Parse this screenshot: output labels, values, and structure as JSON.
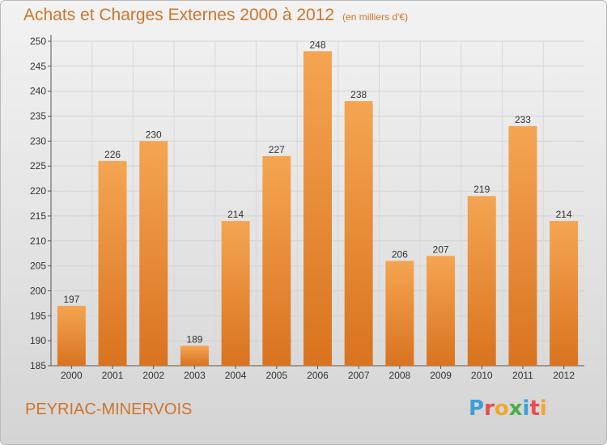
{
  "header": {
    "title": "Achats et Charges Externes 2000 à 2012",
    "subtitle": "(en milliers d'€)"
  },
  "footer": {
    "commune": "PEYRIAC-MINERVOIS",
    "logo": {
      "text": "Proxiti",
      "letters": [
        {
          "char": "P",
          "color": "#3b9fd9"
        },
        {
          "char": "r",
          "color": "#e84d4d"
        },
        {
          "char": "o",
          "color": "#f2a72b"
        },
        {
          "char": "x",
          "color": "#4aae4a"
        },
        {
          "char": "i",
          "color": "#3b9fd9"
        },
        {
          "char": "t",
          "color": "#e84d4d"
        },
        {
          "char": "i",
          "color": "#f2a72b"
        }
      ]
    }
  },
  "colors": {
    "bar_top": "#f5a552",
    "bar_bottom": "#d9731f",
    "title": "#d0742a",
    "axis": "#555555"
  },
  "chart_data": {
    "type": "bar",
    "categories": [
      "2000",
      "2001",
      "2002",
      "2003",
      "2004",
      "2005",
      "2006",
      "2007",
      "2008",
      "2009",
      "2010",
      "2011",
      "2012"
    ],
    "values": [
      197,
      226,
      230,
      189,
      214,
      227,
      248,
      238,
      206,
      207,
      219,
      233,
      214
    ],
    "ylim": [
      185,
      250
    ],
    "yticks": [
      185,
      190,
      195,
      200,
      205,
      210,
      215,
      220,
      225,
      230,
      235,
      240,
      245,
      250
    ],
    "grid": true,
    "data_labels": true
  }
}
